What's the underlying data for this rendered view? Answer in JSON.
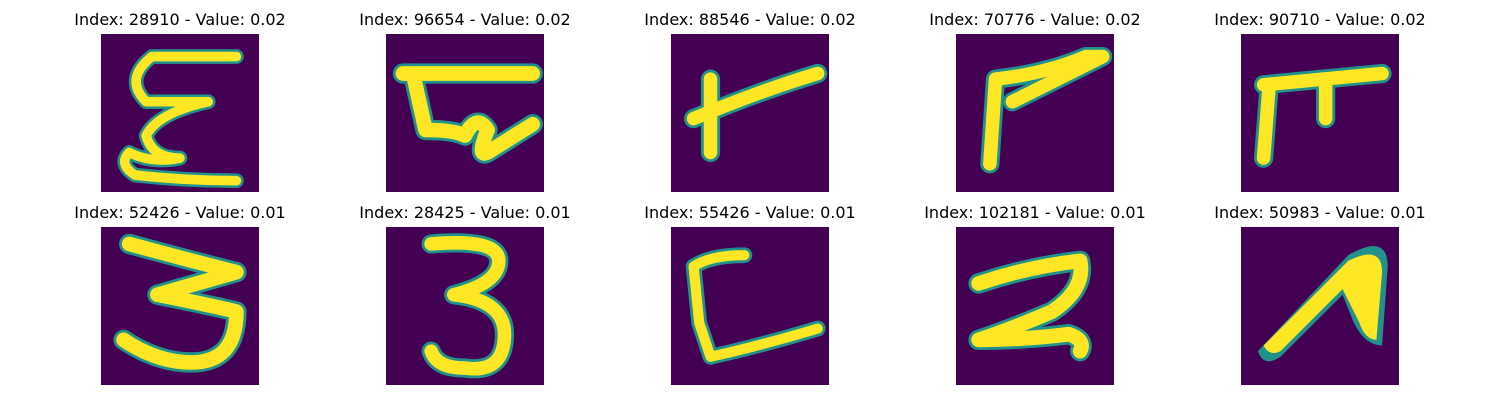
{
  "colors": {
    "background": "#440154",
    "ink": "#fde725",
    "edge": "#21918c"
  },
  "panels": [
    {
      "title": "Index: 28910 - Value: 0.02",
      "index": "28910",
      "value": "0.02",
      "glyph": "squiggle-e"
    },
    {
      "title": "Index: 96654 - Value: 0.02",
      "index": "96654",
      "value": "0.02",
      "glyph": "bar-curl"
    },
    {
      "title": "Index: 88546 - Value: 0.02",
      "index": "88546",
      "value": "0.02",
      "glyph": "slanted-t"
    },
    {
      "title": "Index: 70776 - Value: 0.02",
      "index": "70776",
      "value": "0.02",
      "glyph": "seven-like"
    },
    {
      "title": "Index: 90710 - Value: 0.02",
      "index": "90710",
      "value": "0.02",
      "glyph": "pi-like"
    },
    {
      "title": "Index: 52426 - Value: 0.01",
      "index": "52426",
      "value": "0.01",
      "glyph": "three"
    },
    {
      "title": "Index: 28425 - Value: 0.01",
      "index": "28425",
      "value": "0.01",
      "glyph": "three"
    },
    {
      "title": "Index: 55426 - Value: 0.01",
      "index": "55426",
      "value": "0.01",
      "glyph": "l-shape"
    },
    {
      "title": "Index: 102181 - Value: 0.01",
      "index": "102181",
      "value": "0.01",
      "glyph": "two"
    },
    {
      "title": "Index: 50983 - Value: 0.01",
      "index": "50983",
      "value": "0.01",
      "glyph": "blob"
    }
  ]
}
